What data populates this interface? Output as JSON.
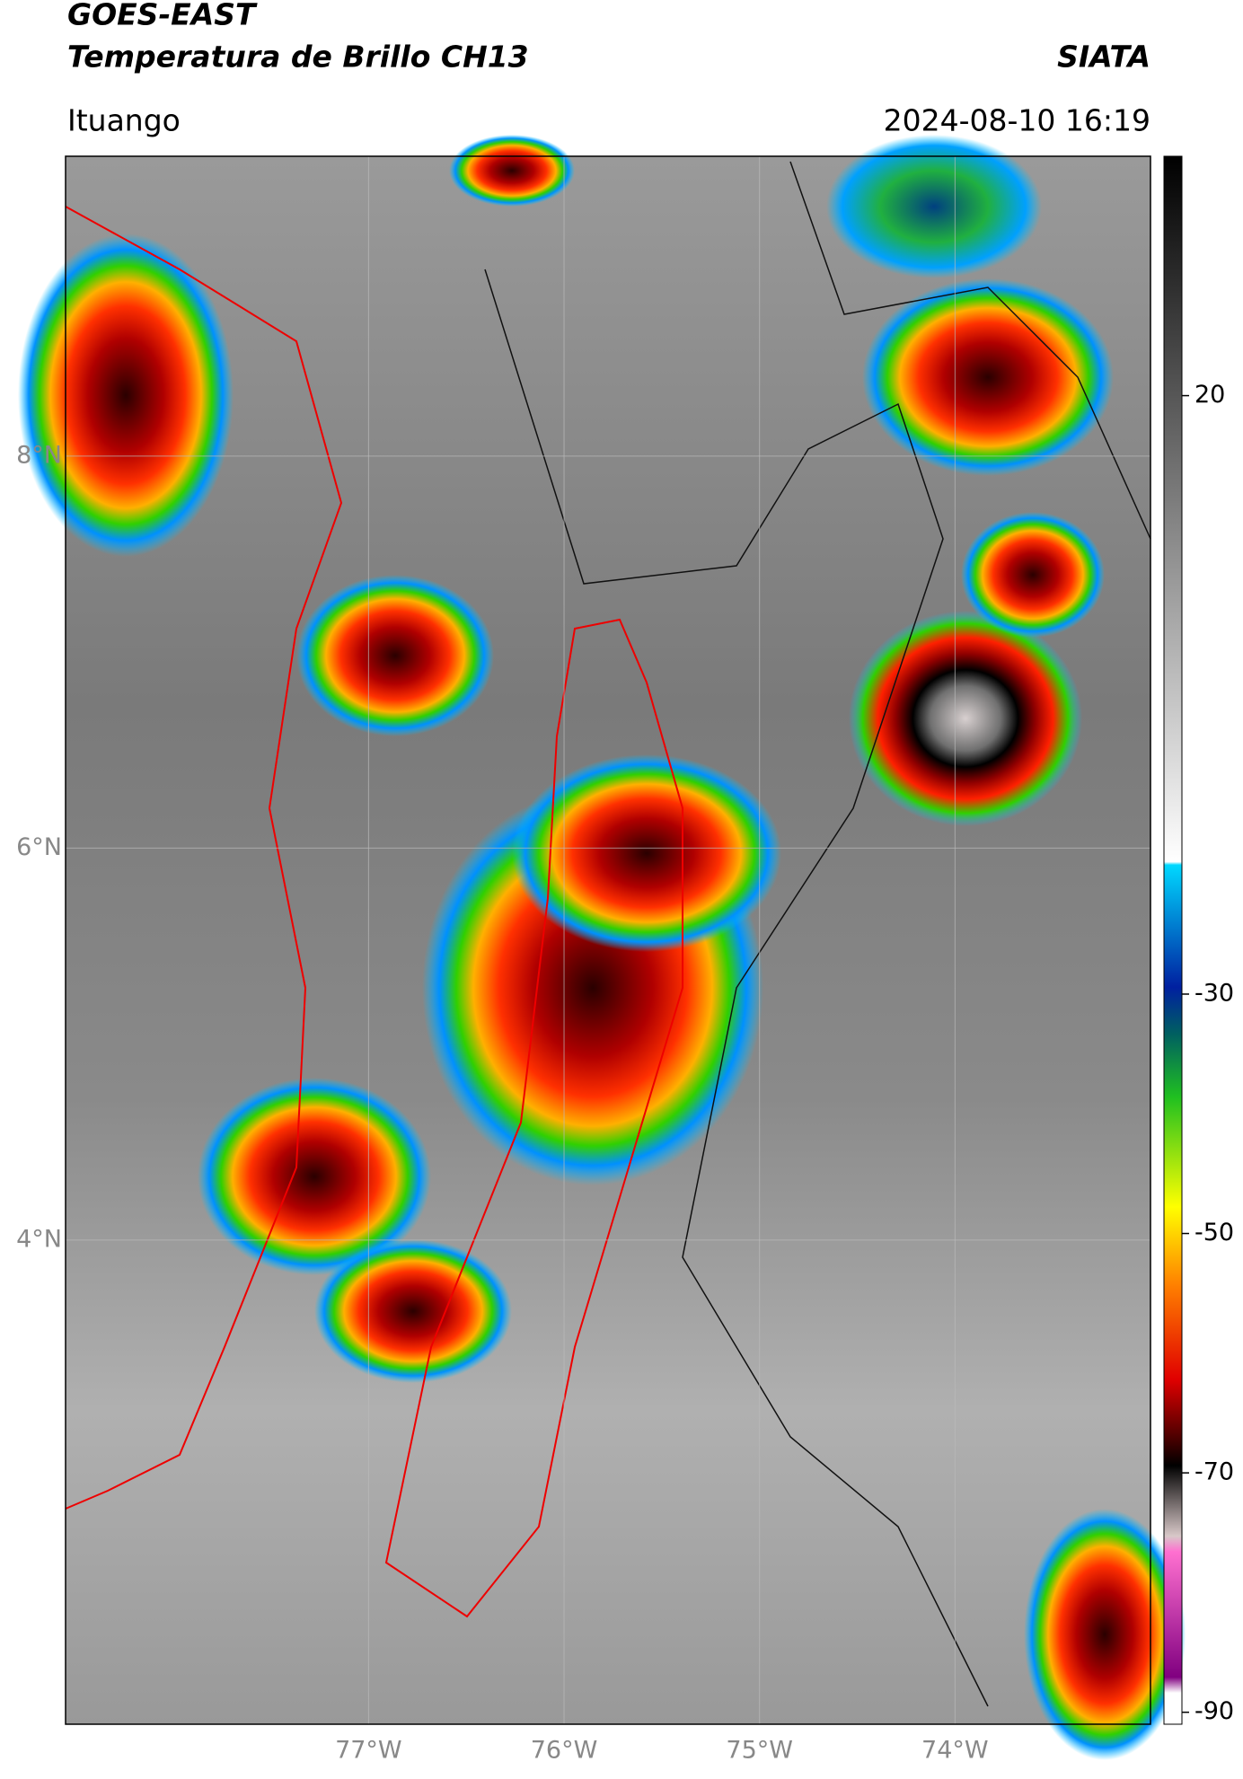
{
  "header": {
    "title": "GOES-EAST",
    "subtitle": "Temperatura de Brillo CH13",
    "source": "SIATA",
    "location": "Ituango",
    "timestamp": "2024-08-10 16:19"
  },
  "map": {
    "xlim": [
      -78.55,
      -73.0
    ],
    "ylim": [
      1.53,
      9.53
    ],
    "yticks": [
      {
        "value": 8,
        "label": "8°N"
      },
      {
        "value": 6,
        "label": "6°N"
      },
      {
        "value": 4,
        "label": "4°N"
      }
    ],
    "xticks": [
      {
        "value": -77,
        "label": "77°W"
      },
      {
        "value": -76,
        "label": "76°W"
      },
      {
        "value": -75,
        "label": "75°W"
      },
      {
        "value": -74,
        "label": "74°W"
      }
    ]
  },
  "colorbar": {
    "lim": [
      -91,
      40
    ],
    "ticks": [
      20,
      -30,
      -50,
      -70,
      -90
    ]
  }
}
